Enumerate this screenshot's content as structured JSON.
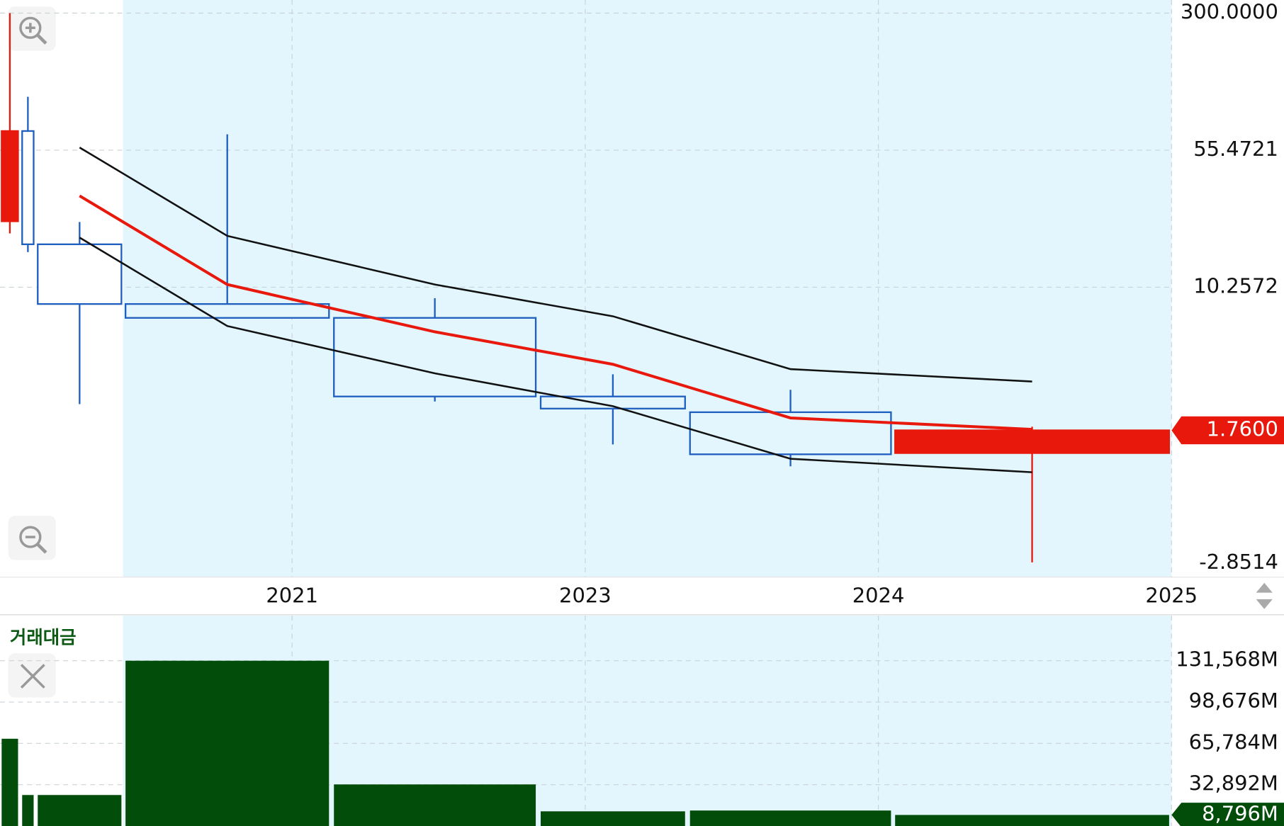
{
  "chart_data": [
    {
      "type": "candlestick",
      "yscale": "log",
      "ylim": [
        0.346,
        300
      ],
      "yticks": [
        {
          "value": 300,
          "label": "300.0000"
        },
        55.4721,
        10.2572
      ],
      "bottom_axis_label": "-2.8514",
      "x_labels": [
        "2021",
        "2023",
        "2024",
        "2025"
      ],
      "open": [
        23.1,
        70.2,
        17.4,
        8.34,
        7.03,
        2.67,
        2.2,
        1.33
      ],
      "high": [
        300,
        107,
        22.9,
        67.4,
        8.96,
        3.51,
        2.9,
        1.84
      ],
      "low": [
        19.9,
        15.8,
        2.43,
        7.03,
        2.51,
        1.48,
        1.13,
        0.346
      ],
      "close": [
        70.2,
        17.4,
        8.34,
        7.03,
        2.67,
        2.3,
        1.31,
        1.76
      ],
      "up_color": "#e8190c",
      "down_color": "#1f5fbf",
      "lines": [
        {
          "color": "#111111",
          "values": [
            null,
            null,
            57.3,
            19.3,
            10.6,
            7.17,
            3.74,
            3.21
          ]
        },
        {
          "color": "#e8190c",
          "values": [
            null,
            null,
            31.6,
            10.6,
            5.92,
            3.97,
            2.05,
            1.78
          ]
        },
        {
          "color": "#111111",
          "values": [
            null,
            null,
            18.9,
            6.36,
            3.55,
            2.37,
            1.24,
            1.05
          ]
        }
      ],
      "last_price": 1.76,
      "last_price_label": "1.7600"
    },
    {
      "type": "bar",
      "title": "거래대금",
      "color": "#034d0a",
      "values": [
        69460,
        24670,
        24670,
        131568,
        33100,
        11680,
        12330,
        8796
      ],
      "ylim": [
        0,
        165530
      ],
      "yticks": [
        {
          "value": 32892,
          "label": "32,892M"
        },
        {
          "value": 65784,
          "label": "65,784M"
        },
        {
          "value": 98676,
          "label": "98,676M"
        },
        {
          "value": 131568,
          "label": "131,568M"
        }
      ],
      "last_value": 8796,
      "last_value_label": "8,796M"
    }
  ]
}
